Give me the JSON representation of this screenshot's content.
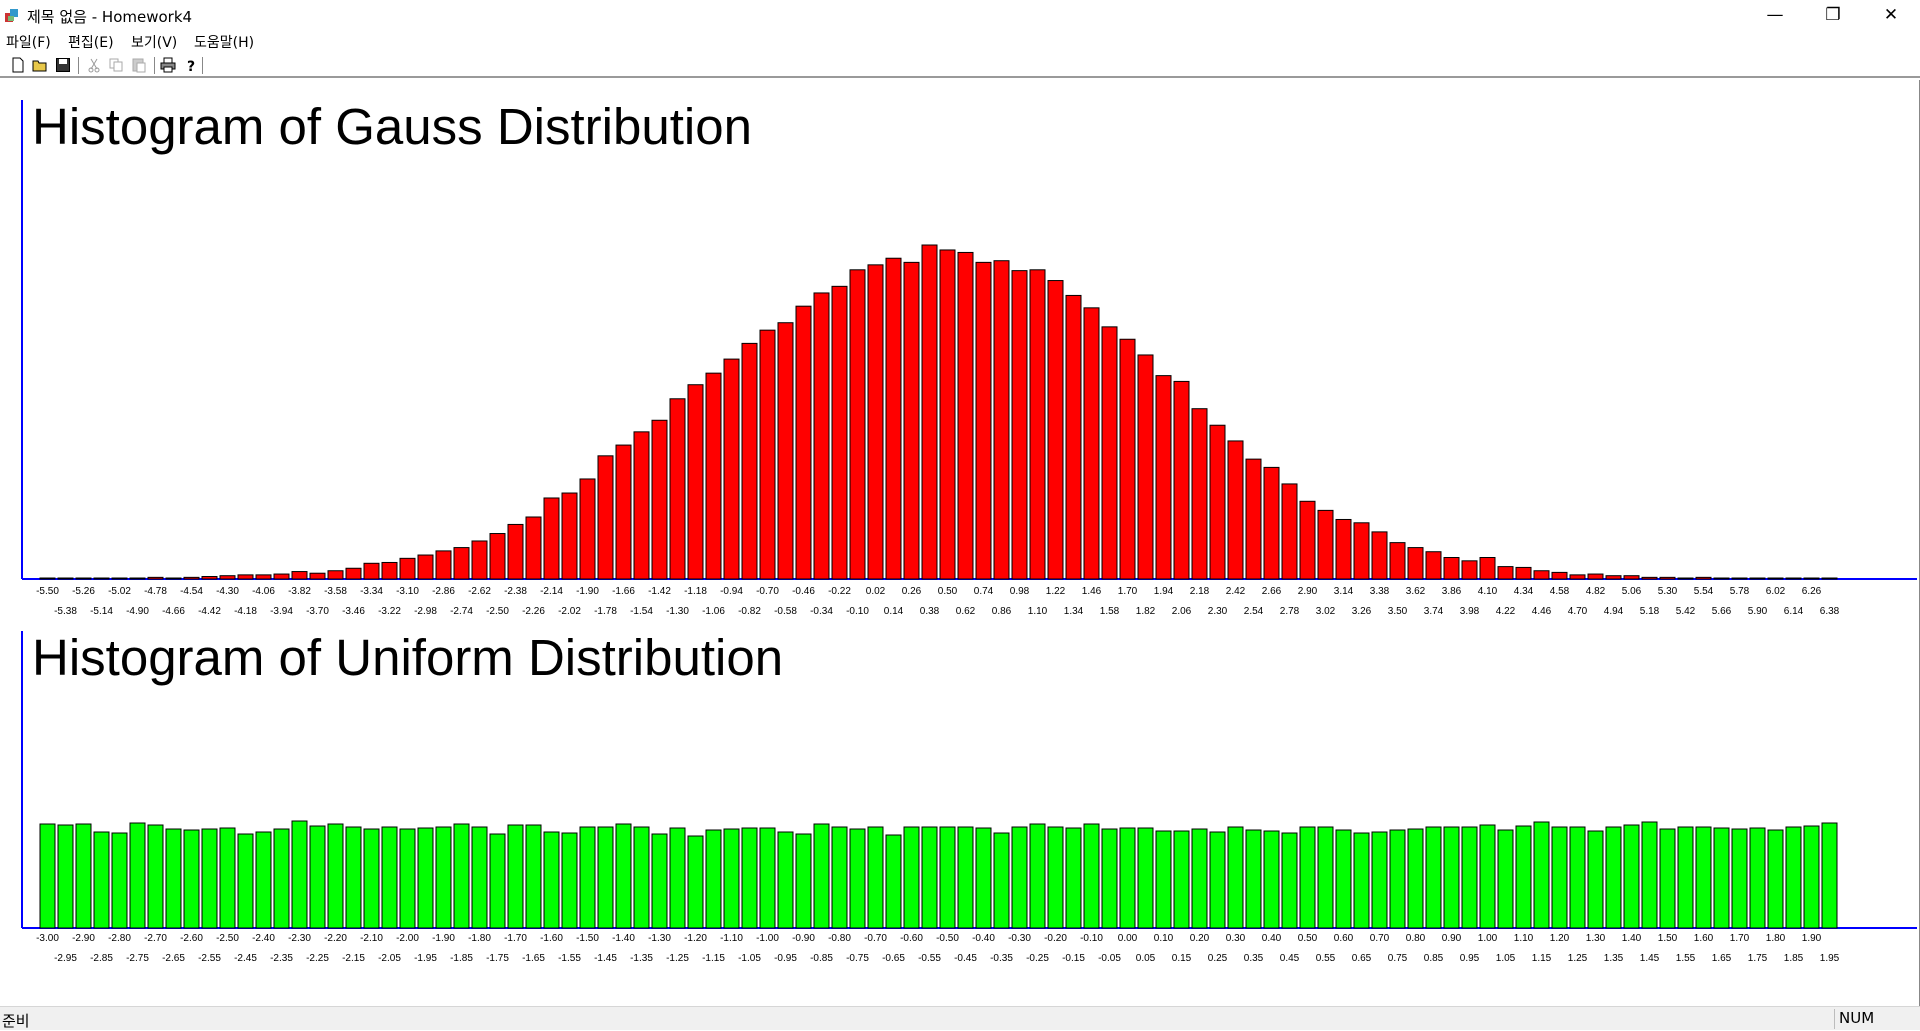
{
  "window": {
    "title": "제목 없음 - Homework4",
    "minimize": "—",
    "maximize": "❐",
    "close": "✕"
  },
  "menu": {
    "items": [
      "파일(F)",
      "편집(E)",
      "보기(V)",
      "도움말(H)"
    ]
  },
  "toolbar": {
    "buttons": [
      "new-icon",
      "open-icon",
      "save-icon",
      "cut-icon",
      "copy-icon",
      "paste-icon",
      "print-icon",
      "help-icon"
    ]
  },
  "colors": {
    "gauss_bar": "#ff0000",
    "uniform_bar": "#00ff00",
    "axis": "#0000ff",
    "bar_outline": "#000000"
  },
  "status": {
    "text": "준비",
    "num": "NUM"
  },
  "chart_data": [
    {
      "type": "bar",
      "title": "Histogram of Gauss Distribution",
      "categories": [
        "-5.50",
        "-5.38",
        "-5.26",
        "-5.14",
        "-5.02",
        "-4.90",
        "-4.78",
        "-4.66",
        "-4.54",
        "-4.42",
        "-4.30",
        "-4.18",
        "-4.06",
        "-3.94",
        "-3.82",
        "-3.70",
        "-3.58",
        "-3.46",
        "-3.34",
        "-3.22",
        "-3.10",
        "-2.98",
        "-2.86",
        "-2.74",
        "-2.62",
        "-2.50",
        "-2.38",
        "-2.26",
        "-2.14",
        "-2.02",
        "-1.90",
        "-1.78",
        "-1.66",
        "-1.54",
        "-1.42",
        "-1.30",
        "-1.18",
        "-1.06",
        "-0.94",
        "-0.82",
        "-0.70",
        "-0.58",
        "-0.46",
        "-0.34",
        "-0.22",
        "-0.10",
        "0.02",
        "0.14",
        "0.26",
        "0.38",
        "0.50",
        "0.62",
        "0.74",
        "0.86",
        "0.98",
        "1.10",
        "1.22",
        "1.34",
        "1.46",
        "1.58",
        "1.70",
        "1.82",
        "1.94",
        "2.06",
        "2.18",
        "2.30",
        "2.42",
        "2.54",
        "2.66",
        "2.78",
        "2.90",
        "3.02",
        "3.14",
        "3.26",
        "3.38",
        "3.50",
        "3.62",
        "3.74",
        "3.86",
        "3.98",
        "4.10",
        "4.22",
        "4.34",
        "4.46",
        "4.58",
        "4.70",
        "4.82",
        "4.94",
        "5.06",
        "5.18",
        "5.30",
        "5.42",
        "5.54",
        "5.66",
        "5.78",
        "5.90",
        "6.02",
        "6.14",
        "6.26",
        "6.38"
      ],
      "values": [
        1,
        1,
        1,
        1,
        1,
        1,
        2,
        1,
        2,
        3,
        4,
        5,
        5,
        6,
        9,
        7,
        10,
        13,
        19,
        20,
        25,
        29,
        34,
        38,
        46,
        55,
        66,
        75,
        98,
        104,
        121,
        149,
        162,
        178,
        192,
        218,
        235,
        249,
        266,
        285,
        301,
        310,
        330,
        346,
        354,
        374,
        380,
        388,
        383,
        404,
        398,
        395,
        383,
        385,
        373,
        374,
        361,
        343,
        328,
        305,
        290,
        271,
        246,
        239,
        206,
        186,
        167,
        145,
        135,
        115,
        94,
        83,
        72,
        68,
        57,
        44,
        38,
        33,
        26,
        22,
        26,
        15,
        14,
        10,
        8,
        5,
        6,
        4,
        4,
        2,
        2,
        1,
        2,
        1,
        1,
        1,
        1,
        1,
        1,
        1
      ],
      "ylim": [
        0,
        404
      ]
    },
    {
      "type": "bar",
      "title": "Histogram of Uniform Distribution",
      "categories": [
        "-3.00",
        "-2.95",
        "-2.90",
        "-2.85",
        "-2.80",
        "-2.75",
        "-2.70",
        "-2.65",
        "-2.60",
        "-2.55",
        "-2.50",
        "-2.45",
        "-2.40",
        "-2.35",
        "-2.30",
        "-2.25",
        "-2.20",
        "-2.15",
        "-2.10",
        "-2.05",
        "-2.00",
        "-1.95",
        "-1.90",
        "-1.85",
        "-1.80",
        "-1.75",
        "-1.70",
        "-1.65",
        "-1.60",
        "-1.55",
        "-1.50",
        "-1.45",
        "-1.40",
        "-1.35",
        "-1.30",
        "-1.25",
        "-1.20",
        "-1.15",
        "-1.10",
        "-1.05",
        "-1.00",
        "-0.95",
        "-0.90",
        "-0.85",
        "-0.80",
        "-0.75",
        "-0.70",
        "-0.65",
        "-0.60",
        "-0.55",
        "-0.50",
        "-0.45",
        "-0.40",
        "-0.35",
        "-0.30",
        "-0.25",
        "-0.20",
        "-0.15",
        "-0.10",
        "-0.05",
        "0.00",
        "0.05",
        "0.10",
        "0.15",
        "0.20",
        "0.25",
        "0.30",
        "0.35",
        "0.40",
        "0.45",
        "0.50",
        "0.55",
        "0.60",
        "0.65",
        "0.70",
        "0.75",
        "0.80",
        "0.85",
        "0.90",
        "0.95",
        "1.00",
        "1.05",
        "1.10",
        "1.15",
        "1.20",
        "1.25",
        "1.30",
        "1.35",
        "1.40",
        "1.45",
        "1.50",
        "1.55",
        "1.60",
        "1.65",
        "1.70",
        "1.75",
        "1.80",
        "1.85",
        "1.90",
        "1.95"
      ],
      "values": [
        104,
        103,
        104,
        96,
        95,
        105,
        103,
        99,
        98,
        99,
        100,
        94,
        96,
        99,
        107,
        102,
        104,
        101,
        99,
        101,
        99,
        100,
        101,
        104,
        101,
        94,
        103,
        103,
        96,
        95,
        101,
        101,
        104,
        101,
        94,
        100,
        92,
        98,
        99,
        100,
        100,
        96,
        94,
        104,
        101,
        99,
        101,
        93,
        101,
        101,
        101,
        101,
        100,
        95,
        101,
        104,
        101,
        100,
        104,
        99,
        100,
        100,
        97,
        97,
        99,
        96,
        101,
        98,
        97,
        95,
        101,
        101,
        98,
        95,
        96,
        98,
        99,
        101,
        101,
        101,
        103,
        98,
        102,
        106,
        101,
        101,
        97,
        101,
        103,
        106,
        99,
        101,
        101,
        100,
        99,
        100,
        98,
        101,
        102,
        105
      ],
      "ylim": [
        0,
        122
      ]
    }
  ]
}
